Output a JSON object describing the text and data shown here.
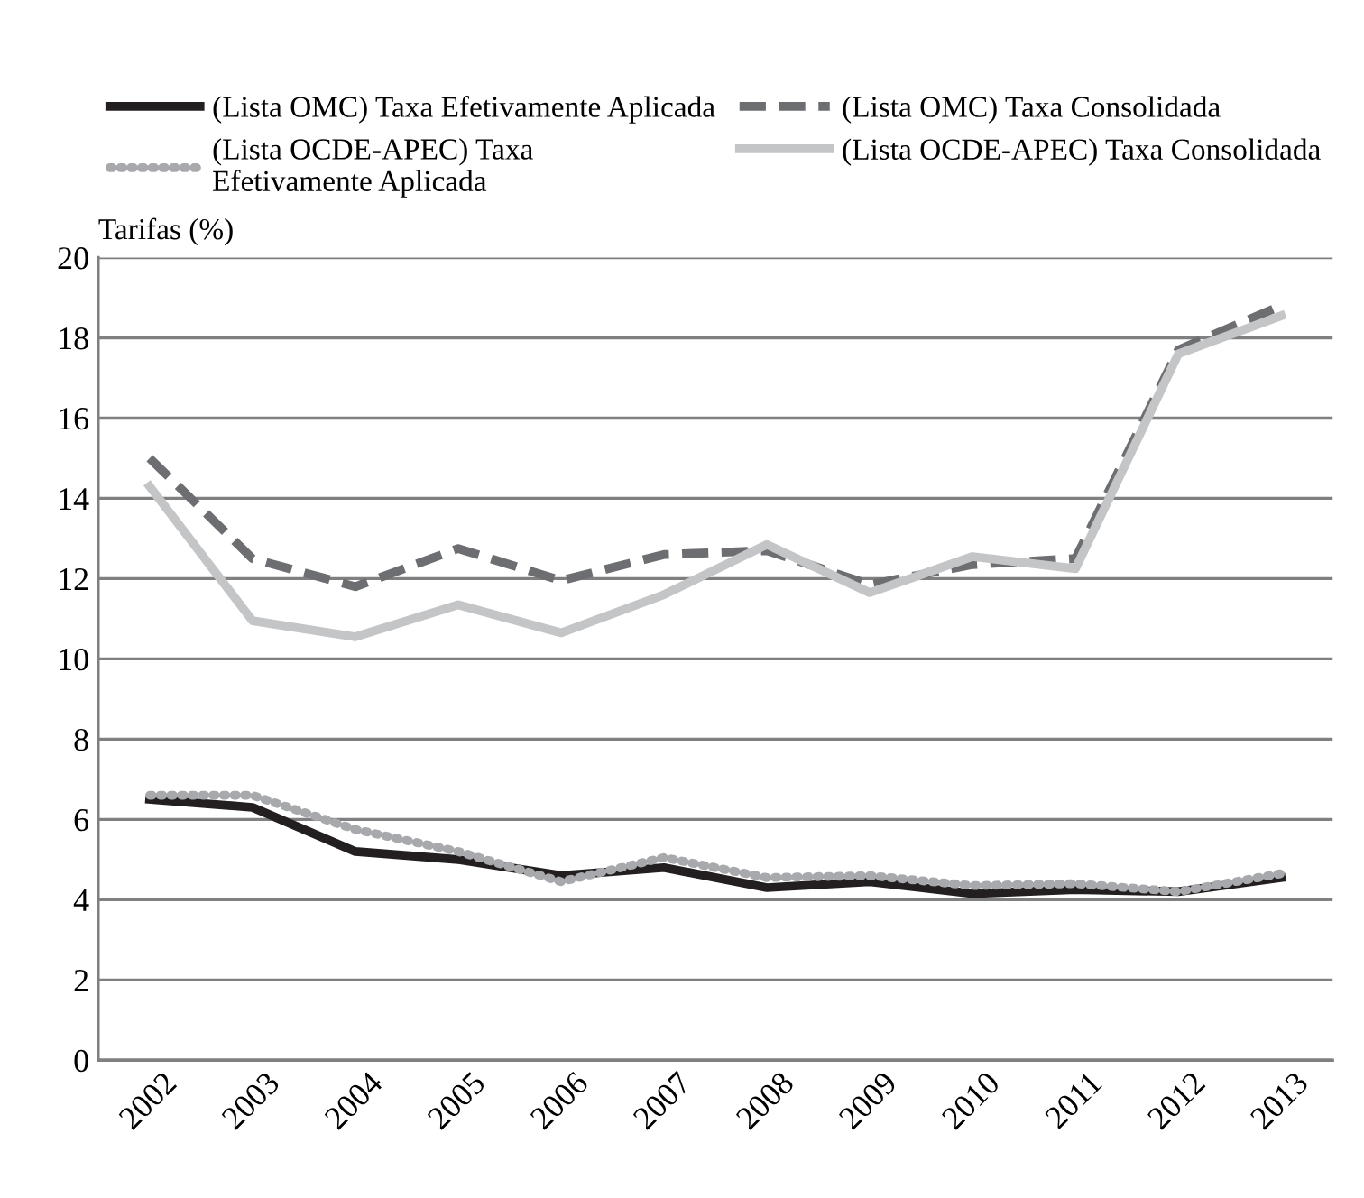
{
  "chart_data": {
    "type": "line",
    "ylabel": "Tarifas (%)",
    "categories": [
      "2002",
      "2003",
      "2004",
      "2005",
      "2006",
      "2007",
      "2008",
      "2009",
      "2010",
      "2011",
      "2012",
      "2013"
    ],
    "series": [
      {
        "name": "(Lista OMC) Taxa Efetivamente Aplicada",
        "color": "#231f20",
        "line_style": "solid",
        "values": [
          6.5,
          6.3,
          5.2,
          5.0,
          4.6,
          4.8,
          4.3,
          4.45,
          4.15,
          4.25,
          4.2,
          4.55
        ]
      },
      {
        "name": "(Lista OMC) Taxa Consolidada",
        "color": "#6d6e71",
        "line_style": "dashed",
        "values": [
          15.0,
          12.5,
          11.8,
          12.75,
          11.95,
          12.6,
          12.7,
          11.85,
          12.35,
          12.5,
          17.7,
          18.8
        ]
      },
      {
        "name": "(Lista OCDE-APEC) Taxa\nEfetivamente Aplicada",
        "color": "#a7a9ac",
        "line_style": "dotted",
        "values": [
          6.6,
          6.6,
          5.75,
          5.2,
          4.45,
          5.05,
          4.55,
          4.6,
          4.35,
          4.4,
          4.2,
          4.65
        ]
      },
      {
        "name": "(Lista OCDE-APEC) Taxa Consolidada",
        "color": "#c4c5c7",
        "line_style": "solid",
        "values": [
          14.3,
          10.95,
          10.55,
          11.35,
          10.65,
          11.6,
          12.85,
          11.65,
          12.55,
          12.25,
          17.6,
          18.55
        ]
      }
    ],
    "ylim": [
      0,
      20
    ],
    "yticks": [
      0,
      2,
      4,
      6,
      8,
      10,
      12,
      14,
      16,
      18,
      20
    ],
    "grid": "y",
    "legend": "top"
  }
}
